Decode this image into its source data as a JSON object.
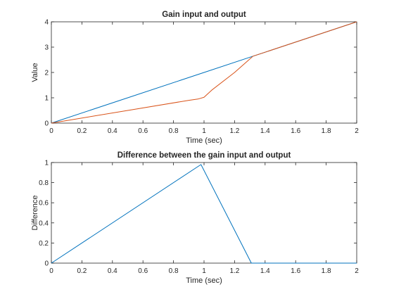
{
  "colors": {
    "background": "#ffffff",
    "axes": "#262626",
    "series_blue": "#0072BD",
    "series_orange": "#D95319"
  },
  "chart_data": [
    {
      "type": "line",
      "title": "Gain input and output",
      "xlabel": "Time (sec)",
      "ylabel": "Value",
      "xlim": [
        0,
        2
      ],
      "ylim": [
        0,
        4
      ],
      "xticks": [
        "0",
        "0.2",
        "0.4",
        "0.6",
        "0.8",
        "1",
        "1.2",
        "1.4",
        "1.6",
        "1.8",
        "2"
      ],
      "yticks": [
        "0",
        "1",
        "2",
        "3",
        "4"
      ],
      "grid": false,
      "legend": null,
      "series": [
        {
          "color": "#0072BD",
          "x": [
            0,
            0.5,
            1.0,
            1.32,
            1.5,
            2.0
          ],
          "y": [
            0,
            1.0,
            2.0,
            2.64,
            3.0,
            4.0
          ]
        },
        {
          "color": "#D95319",
          "x": [
            0,
            0.5,
            0.9,
            0.96,
            1.0,
            1.05,
            1.2,
            1.32,
            1.5,
            2.0
          ],
          "y": [
            0,
            0.5,
            0.9,
            0.95,
            1.02,
            1.3,
            2.0,
            2.64,
            3.0,
            4.0
          ]
        }
      ]
    },
    {
      "type": "line",
      "title": "Difference between the gain input and output",
      "xlabel": "Time (sec)",
      "ylabel": "Difference",
      "xlim": [
        0,
        2
      ],
      "ylim": [
        0,
        1
      ],
      "xticks": [
        "0",
        "0.2",
        "0.4",
        "0.6",
        "0.8",
        "1",
        "1.2",
        "1.4",
        "1.6",
        "1.8",
        "2"
      ],
      "yticks": [
        "0",
        "0.2",
        "0.4",
        "0.6",
        "0.8",
        "1"
      ],
      "grid": false,
      "legend": null,
      "series": [
        {
          "color": "#0072BD",
          "x": [
            0,
            0.98,
            1.31,
            1.33,
            2.0
          ],
          "y": [
            0,
            0.98,
            0.0,
            0.0,
            0.0
          ]
        }
      ]
    }
  ]
}
